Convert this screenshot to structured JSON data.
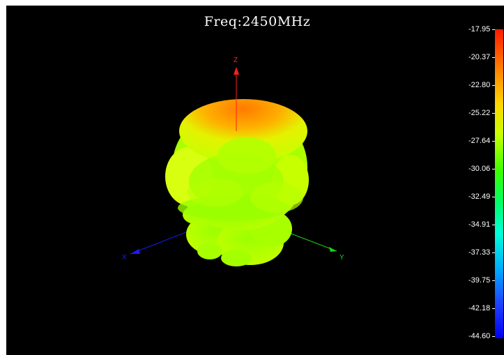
{
  "title": "Freq:2450MHz",
  "axes": {
    "z_label": "Z",
    "x_label": "X",
    "y_label": "Y",
    "colors": {
      "z": "#ff2020",
      "x": "#1a1aff",
      "y": "#18d418"
    }
  },
  "colorbar": {
    "ticks": [
      "-17.95",
      "-20.37",
      "-22.80",
      "-25.22",
      "-27.64",
      "-30.06",
      "-32.49",
      "-34.91",
      "-37.33",
      "-39.75",
      "-42.18",
      "-44.60"
    ],
    "max": -17.95,
    "min": -44.6
  }
}
